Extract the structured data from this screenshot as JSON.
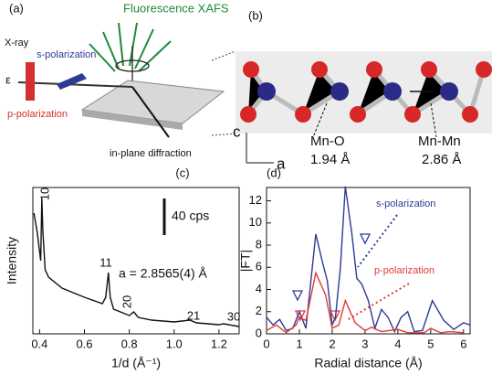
{
  "panel_a": {
    "label": "(a)",
    "fluorescence": "Fluorescence XAFS",
    "xray": "X-ray",
    "s_pol": "s-polarization",
    "epsilon": "ε",
    "p_pol": "p-polarization",
    "diffraction": "in-plane diffraction"
  },
  "panel_b": {
    "label": "(b)",
    "axis_c": "c",
    "axis_a": "a",
    "mno_label": "Mn-O",
    "mno_distance": "1.94 Å",
    "mnmn_label": "Mn-Mn",
    "mnmn_distance": "2.86 Å"
  },
  "chart_data": [
    {
      "type": "line",
      "panel_label": "(c)",
      "x_label": "1/d (Å⁻¹)",
      "y_label": "Intensity",
      "xlim": [
        0.37,
        1.29
      ],
      "xticks": [
        0.4,
        0.6,
        0.8,
        {
          "value": 1,
          "label": "1.0"
        },
        1.2
      ],
      "ylim": [
        0,
        160
      ],
      "x": [
        0.375,
        0.39,
        0.4,
        0.405,
        0.41,
        0.415,
        0.425,
        0.44,
        0.5,
        0.6,
        0.68,
        0.695,
        0.707,
        0.715,
        0.73,
        0.8,
        0.82,
        0.84,
        0.9,
        1.0,
        1.07,
        1.1,
        1.2,
        1.22,
        1.29
      ],
      "values": [
        132,
        110,
        90,
        80,
        148,
        110,
        70,
        62,
        50,
        40,
        33,
        40,
        67,
        40,
        27,
        20,
        24,
        18,
        15,
        13,
        15,
        12,
        10,
        11,
        8
      ],
      "color": "#111111",
      "annotations": [
        "10",
        "11",
        "20",
        "21",
        "30"
      ],
      "lattice": "a = 2.8565(4)  Å",
      "scale_bar": {
        "value": 40,
        "label": "40 cps"
      }
    },
    {
      "type": "line",
      "panel_label": "(d)",
      "x_label": "Radial distance (Å)",
      "y_label": "|FT|",
      "xlim": [
        0,
        6.2
      ],
      "xticks": [
        0,
        1,
        2,
        3,
        4,
        5,
        6
      ],
      "ylim": [
        0,
        13.2
      ],
      "yticks": [
        0,
        2,
        4,
        6,
        8,
        10,
        12
      ],
      "series": [
        {
          "name": "s-polarization",
          "color": "#2e3a94",
          "x": [
            0,
            0.2,
            0.4,
            0.6,
            0.8,
            1.0,
            1.2,
            1.5,
            1.7,
            1.85,
            2.0,
            2.1,
            2.25,
            2.4,
            2.6,
            2.75,
            2.9,
            3.1,
            3.3,
            3.5,
            3.7,
            3.9,
            4.1,
            4.3,
            4.5,
            4.75,
            5.05,
            5.4,
            5.7,
            6.0,
            6.2
          ],
          "values": [
            1.5,
            0.8,
            1.3,
            0.3,
            0.5,
            2.0,
            0.5,
            9.0,
            6.5,
            4.8,
            0.8,
            1.5,
            6.0,
            13.3,
            9.0,
            5.0,
            4.5,
            3.0,
            0.5,
            2.2,
            1.5,
            0.2,
            1.5,
            2.0,
            0.2,
            0.3,
            3.0,
            1.2,
            0.4,
            1.0,
            0.8
          ]
        },
        {
          "name": "p-polarization",
          "color": "#e03a3a",
          "x": [
            0,
            0.3,
            0.6,
            0.9,
            1.0,
            1.2,
            1.5,
            1.8,
            2.0,
            2.2,
            2.4,
            2.7,
            3.0,
            3.2,
            3.5,
            4.0,
            4.3,
            4.8,
            5.0,
            5.3,
            5.6,
            6.0
          ],
          "values": [
            0.3,
            0.8,
            0.1,
            0.8,
            1.5,
            1.2,
            5.5,
            3.5,
            0.5,
            0.8,
            3.0,
            1.0,
            0.3,
            0.6,
            0.2,
            0.4,
            0.1,
            0.1,
            0.5,
            0.1,
            0.2,
            0.1
          ]
        }
      ]
    }
  ]
}
